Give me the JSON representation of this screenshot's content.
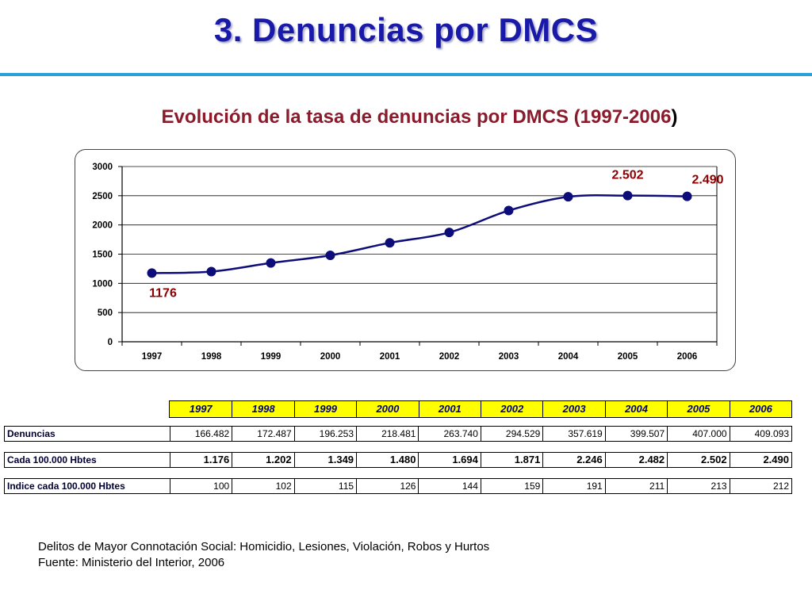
{
  "page": {
    "title": "3.  Denuncias por DMCS"
  },
  "chart_title": {
    "main": "Evolución de la tasa de denuncias por DMCS (1997-2006",
    "close": ")"
  },
  "chart_data": {
    "type": "line",
    "x": [
      "1997",
      "1998",
      "1999",
      "2000",
      "2001",
      "2002",
      "2003",
      "2004",
      "2005",
      "2006"
    ],
    "series": [
      {
        "values": [
          1176,
          1202,
          1349,
          1480,
          1694,
          1871,
          2246,
          2482,
          2502,
          2490
        ]
      }
    ],
    "y_ticks": [
      "0",
      "500",
      "1000",
      "1500",
      "2000",
      "2500",
      "3000"
    ],
    "ylim": [
      0,
      3000
    ],
    "grid": true,
    "line_color": "#0d0d7a",
    "point_color": "#0d0d7a",
    "annotations": [
      {
        "index": 0,
        "text": "1176",
        "color": "#8b0000"
      },
      {
        "index": 8,
        "text": "2.502",
        "color": "#8b0000"
      },
      {
        "index": 9,
        "text": "2.490",
        "color": "#8b0000"
      }
    ]
  },
  "table": {
    "years": [
      "1997",
      "1998",
      "1999",
      "2000",
      "2001",
      "2002",
      "2003",
      "2004",
      "2005",
      "2006"
    ],
    "rows": [
      {
        "label": "Denuncias",
        "values": [
          "166.482",
          "172.487",
          "196.253",
          "218.481",
          "263.740",
          "294.529",
          "357.619",
          "399.507",
          "407.000",
          "409.093"
        ]
      },
      {
        "label": "Cada 100.000 Hbtes",
        "values": [
          "1.176",
          "1.202",
          "1.349",
          "1.480",
          "1.694",
          "1.871",
          "2.246",
          "2.482",
          "2.502",
          "2.490"
        ]
      },
      {
        "label": "Indice cada 100.000 Hbtes",
        "values": [
          "100",
          "102",
          "115",
          "126",
          "144",
          "159",
          "191",
          "211",
          "213",
          "212"
        ]
      }
    ]
  },
  "footnotes": {
    "line1": "Delitos de Mayor Connotación Social: Homicidio, Lesiones, Violación, Robos y Hurtos",
    "line2": "Fuente: Ministerio del Interior,  2006"
  }
}
